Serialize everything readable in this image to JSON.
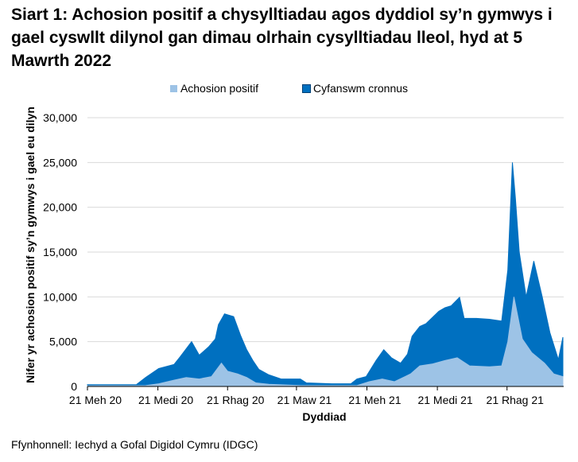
{
  "chart_data": {
    "type": "area",
    "title": "Siart 1: Achosion positif a chysylltiadau agos dyddiol sy’n gymwys i gael cyswllt dilynol gan dimau olrhain cysylltiadau lleol, hyd at 5 Mawrth 2022",
    "xlabel": "Dyddiad",
    "ylabel": "Nifer yr achosion positif sy’n gymwys i gael eu dilyn",
    "ylim": [
      0,
      30000
    ],
    "xlim": [
      "2020-06-21",
      "2022-03-05"
    ],
    "yticks": [
      "0",
      "5,000",
      "10,000",
      "15,000",
      "20,000",
      "25,000",
      "30,000"
    ],
    "ytick_values": [
      0,
      5000,
      10000,
      15000,
      20000,
      25000,
      30000
    ],
    "xticks": [
      "21 Meh 20",
      "21 Medi 20",
      "21 Rhag 20",
      "21 Maw 21",
      "21 Meh 21",
      "21 Medi 21",
      "21 Rhag 21"
    ],
    "xtick_dates": [
      "2020-06-21",
      "2020-09-21",
      "2020-12-21",
      "2021-03-21",
      "2021-06-21",
      "2021-09-21",
      "2021-12-21"
    ],
    "grid": true,
    "legend_position": "top",
    "series": [
      {
        "name": "Cyfanswm cronnus",
        "color": "#0070c0",
        "points": [
          [
            "2020-06-21",
            200
          ],
          [
            "2020-08-24",
            200
          ],
          [
            "2020-09-05",
            1000
          ],
          [
            "2020-09-22",
            2000
          ],
          [
            "2020-10-12",
            2450
          ],
          [
            "2020-10-20",
            3300
          ],
          [
            "2020-11-04",
            5000
          ],
          [
            "2020-11-14",
            3500
          ],
          [
            "2020-11-26",
            4400
          ],
          [
            "2020-12-05",
            5300
          ],
          [
            "2020-12-09",
            6900
          ],
          [
            "2020-12-17",
            8100
          ],
          [
            "2020-12-29",
            7800
          ],
          [
            "2021-01-07",
            5700
          ],
          [
            "2021-01-15",
            4100
          ],
          [
            "2021-01-23",
            2900
          ],
          [
            "2021-01-31",
            1900
          ],
          [
            "2021-02-13",
            1300
          ],
          [
            "2021-03-01",
            830
          ],
          [
            "2021-03-26",
            830
          ],
          [
            "2021-04-03",
            400
          ],
          [
            "2021-05-06",
            300
          ],
          [
            "2021-05-31",
            300
          ],
          [
            "2021-06-08",
            830
          ],
          [
            "2021-06-20",
            1100
          ],
          [
            "2021-07-03",
            2900
          ],
          [
            "2021-07-13",
            4100
          ],
          [
            "2021-07-23",
            3200
          ],
          [
            "2021-08-04",
            2600
          ],
          [
            "2021-08-13",
            3600
          ],
          [
            "2021-08-19",
            5600
          ],
          [
            "2021-08-29",
            6700
          ],
          [
            "2021-09-06",
            7000
          ],
          [
            "2021-09-23",
            8400
          ],
          [
            "2021-10-01",
            8800
          ],
          [
            "2021-10-09",
            9000
          ],
          [
            "2021-10-20",
            9950
          ],
          [
            "2021-10-26",
            7600
          ],
          [
            "2021-11-11",
            7600
          ],
          [
            "2021-11-28",
            7500
          ],
          [
            "2021-12-14",
            7300
          ],
          [
            "2021-12-22",
            13000
          ],
          [
            "2021-12-28",
            25000
          ],
          [
            "2022-01-01",
            21000
          ],
          [
            "2022-01-06",
            15000
          ],
          [
            "2022-01-15",
            10000
          ],
          [
            "2022-01-25",
            14000
          ],
          [
            "2022-02-05",
            10000
          ],
          [
            "2022-02-15",
            6000
          ],
          [
            "2022-02-26",
            3000
          ],
          [
            "2022-03-04",
            5500
          ]
        ]
      },
      {
        "name": "Achosion positif",
        "color": "#9dc3e6",
        "points": [
          [
            "2020-06-21",
            80
          ],
          [
            "2020-09-05",
            100
          ],
          [
            "2020-09-22",
            300
          ],
          [
            "2020-10-12",
            700
          ],
          [
            "2020-10-28",
            1000
          ],
          [
            "2020-11-14",
            830
          ],
          [
            "2020-11-30",
            1100
          ],
          [
            "2020-12-13",
            2600
          ],
          [
            "2020-12-21",
            1700
          ],
          [
            "2021-01-03",
            1400
          ],
          [
            "2021-01-15",
            1000
          ],
          [
            "2021-01-27",
            400
          ],
          [
            "2021-02-13",
            240
          ],
          [
            "2021-03-26",
            100
          ],
          [
            "2021-06-08",
            100
          ],
          [
            "2021-06-24",
            530
          ],
          [
            "2021-07-11",
            830
          ],
          [
            "2021-07-27",
            530
          ],
          [
            "2021-08-17",
            1400
          ],
          [
            "2021-08-29",
            2300
          ],
          [
            "2021-09-14",
            2500
          ],
          [
            "2021-10-01",
            2900
          ],
          [
            "2021-10-17",
            3200
          ],
          [
            "2021-11-02",
            2300
          ],
          [
            "2021-11-28",
            2200
          ],
          [
            "2021-12-14",
            2300
          ],
          [
            "2021-12-22",
            5000
          ],
          [
            "2021-12-30",
            10000
          ],
          [
            "2022-01-10",
            5300
          ],
          [
            "2022-01-22",
            3800
          ],
          [
            "2022-02-08",
            2600
          ],
          [
            "2022-02-20",
            1400
          ],
          [
            "2022-03-04",
            1100
          ]
        ]
      }
    ]
  },
  "legend": {
    "positive": "Achosion positif",
    "total": "Cyfanswm cronnus"
  },
  "source": "Ffynhonnell: Iechyd a Gofal Digidol Cymru (IDGC)"
}
